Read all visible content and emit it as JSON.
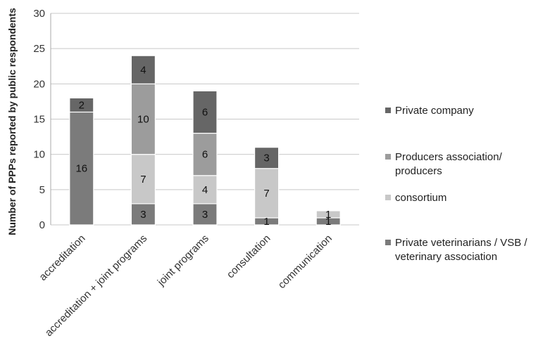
{
  "chart_data": {
    "type": "bar",
    "stacked": true,
    "title": "",
    "xlabel": "",
    "ylabel": "Number of PPPs reported by public respondents",
    "ylim": [
      0,
      30
    ],
    "yticks": [
      0,
      5,
      10,
      15,
      20,
      25,
      30
    ],
    "grid": true,
    "legend_position": "right",
    "categories": [
      "accreditation",
      "accreditation + joint programs",
      "joint programs",
      "consultation",
      "communication"
    ],
    "series": [
      {
        "name": "Private veterinarians / VSB / veterinary association",
        "color": "#7b7b7b",
        "values": [
          16,
          3,
          3,
          1,
          1
        ]
      },
      {
        "name": "consortium",
        "color": "#c8c8c8",
        "values": [
          0,
          7,
          4,
          7,
          1
        ]
      },
      {
        "name": "Producers association/ producers",
        "color": "#9c9c9c",
        "values": [
          0,
          10,
          6,
          0,
          0
        ]
      },
      {
        "name": "Private company",
        "color": "#666666",
        "values": [
          2,
          4,
          6,
          3,
          0
        ]
      }
    ],
    "legend_order": [
      3,
      2,
      1,
      0
    ]
  }
}
